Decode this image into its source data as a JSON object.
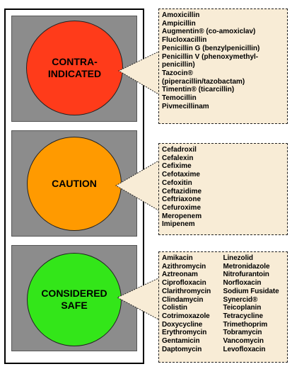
{
  "traffic_light": {
    "contraindicated": {
      "label": "CONTRA-\nINDICATED",
      "color": "#ff3b1a",
      "drugs": [
        "Amoxicillin",
        "Ampicillin",
        "Augmentin® (co-amoxiclav)",
        "Flucloxacillin",
        "Penicillin G (benzylpenicillin)",
        "Penicillin V (phenoxymethyl-",
        "penicillin)",
        "Tazocin®",
        "(piperacillin/tazobactam)",
        "Timentin® (ticarcillin)",
        "Temocillin",
        "Pivmecillinam"
      ]
    },
    "caution": {
      "label": "CAUTION",
      "color": "#ff9a00",
      "drugs": [
        "Cefadroxil",
        "Cefalexin",
        "Cefixime",
        "Cefotaxime",
        "Cefoxitin",
        "Ceftazidime",
        "Ceftriaxone",
        "Cefuroxime",
        "Meropenem",
        "Imipenem"
      ]
    },
    "safe": {
      "label": "CONSIDERED\nSAFE",
      "color": "#33e619",
      "drugs_col1": [
        "Amikacin",
        "Azithromycin",
        "Aztreonam",
        "Ciprofloxacin",
        "Clarithromycin",
        "Clindamycin",
        "Colistin",
        "Cotrimoxazole",
        "Doxycycline",
        "Erythromycin",
        "Gentamicin",
        "Daptomycin"
      ],
      "drugs_col2": [
        "Linezolid",
        "Metronidazole",
        "Nitrofurantoin",
        "Norfloxacin",
        "Sodium Fusidate",
        "Synercid®",
        "Teicoplanin",
        "Tetracycline",
        "Trimethoprim",
        "Tobramycin",
        "Vancomycin",
        "Levofloxacin"
      ]
    }
  },
  "colors": {
    "panel_gray": "#8c8c8c",
    "callout_fill": "#f8ecd6"
  }
}
